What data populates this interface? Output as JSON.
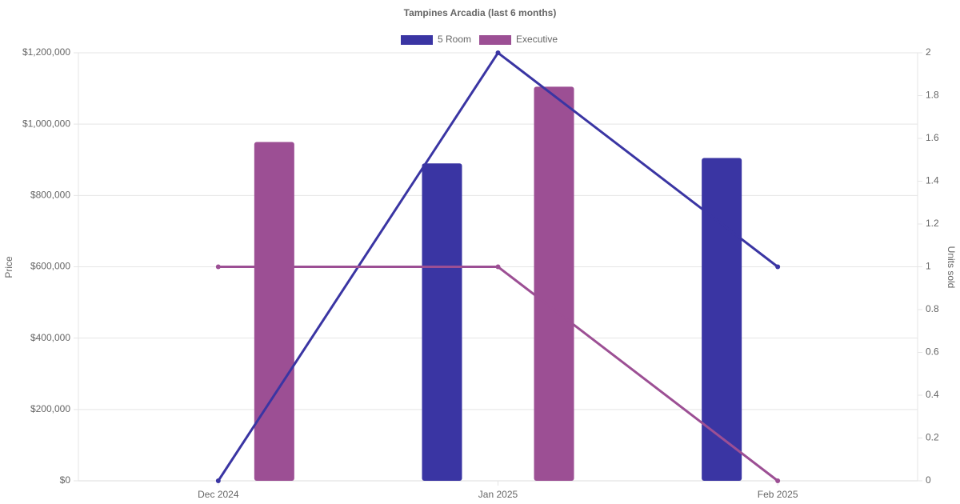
{
  "chart_data": {
    "type": "combo",
    "title": "Tampines Arcadia (last 6 months)",
    "categories": [
      "Dec 2024",
      "Jan 2025",
      "Feb 2025"
    ],
    "series": [
      {
        "name": "5 Room",
        "type": "bar",
        "color": "#3a35a3",
        "values": [
          null,
          890000,
          905000
        ]
      },
      {
        "name": "Executive",
        "type": "bar",
        "color": "#9c4f94",
        "values": [
          950000,
          1105000,
          null
        ]
      },
      {
        "type": "line",
        "axis": "y2",
        "color": "#3a35a3",
        "values": [
          0,
          2,
          1
        ]
      },
      {
        "type": "line",
        "axis": "y2",
        "color": "#9c4f94",
        "values": [
          1,
          1,
          0
        ]
      }
    ],
    "ylabel": "Price",
    "y2label": "Units sold",
    "ylim": [
      0,
      1200000
    ],
    "yticks": [
      {
        "value": 0,
        "label": "$0"
      },
      {
        "value": 200000,
        "label": "$200,000"
      },
      {
        "value": 400000,
        "label": "$400,000"
      },
      {
        "value": 600000,
        "label": "$600,000"
      },
      {
        "value": 800000,
        "label": "$800,000"
      },
      {
        "value": 1000000,
        "label": "$1,000,000"
      },
      {
        "value": 1200000,
        "label": "$1,200,000"
      }
    ],
    "y2lim": [
      0,
      2
    ],
    "y2ticks": [
      0,
      0.2,
      0.4,
      0.6,
      0.8,
      1,
      1.2,
      1.4,
      1.6,
      1.8,
      2
    ],
    "grid": true,
    "legend": "top"
  }
}
